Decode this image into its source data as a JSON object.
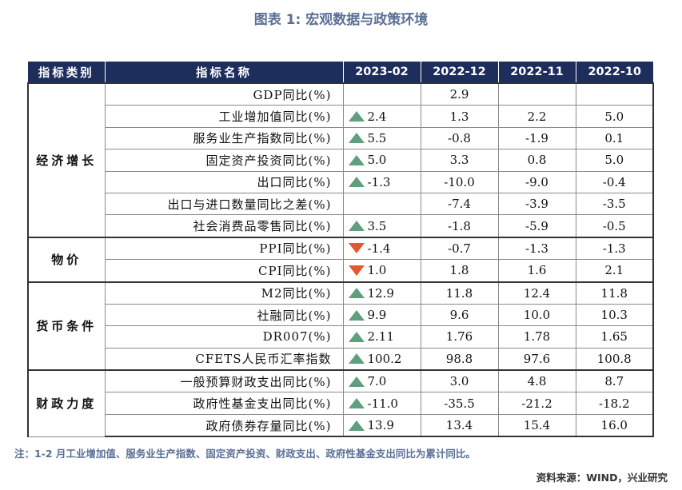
{
  "title": "图表 1:  宏观数据与政策环境",
  "headers": [
    "指标类别",
    "指标名称",
    "2023-02",
    "2022-12",
    "2022-11",
    "2022-10"
  ],
  "colors": {
    "header_bg": "#1d2d5c",
    "up": "#5f9e7f",
    "down": "#e0592f",
    "title": "#5b6f96"
  },
  "groups": [
    {
      "category": "经济增长",
      "rows": [
        {
          "name": "GDP同比(%)",
          "trend": "",
          "cur": "",
          "v2212": "2.9",
          "v2211": "",
          "v2210": ""
        },
        {
          "name": "工业增加值同比(%)",
          "trend": "up",
          "cur": "2.4",
          "v2212": "1.3",
          "v2211": "2.2",
          "v2210": "5.0"
        },
        {
          "name": "服务业生产指数同比(%)",
          "trend": "up",
          "cur": "5.5",
          "v2212": "-0.8",
          "v2211": "-1.9",
          "v2210": "0.1"
        },
        {
          "name": "固定资产投资同比(%)",
          "trend": "up",
          "cur": "5.0",
          "v2212": "3.3",
          "v2211": "0.8",
          "v2210": "5.0"
        },
        {
          "name": "出口同比(%)",
          "trend": "up",
          "cur": "-1.3",
          "v2212": "-10.0",
          "v2211": "-9.0",
          "v2210": "-0.4"
        },
        {
          "name": "出口与进口数量同比之差(%)",
          "trend": "",
          "cur": "",
          "v2212": "-7.4",
          "v2211": "-3.9",
          "v2210": "-3.5"
        },
        {
          "name": "社会消费品零售同比(%)",
          "trend": "up",
          "cur": "3.5",
          "v2212": "-1.8",
          "v2211": "-5.9",
          "v2210": "-0.5"
        }
      ]
    },
    {
      "category": "物价",
      "rows": [
        {
          "name": "PPI同比(%)",
          "trend": "down",
          "cur": "-1.4",
          "v2212": "-0.7",
          "v2211": "-1.3",
          "v2210": "-1.3"
        },
        {
          "name": "CPI同比(%)",
          "trend": "down",
          "cur": "1.0",
          "v2212": "1.8",
          "v2211": "1.6",
          "v2210": "2.1"
        }
      ]
    },
    {
      "category": "货币条件",
      "rows": [
        {
          "name": "M2同比(%)",
          "trend": "up",
          "cur": "12.9",
          "v2212": "11.8",
          "v2211": "12.4",
          "v2210": "11.8"
        },
        {
          "name": "社融同比(%)",
          "trend": "up",
          "cur": "9.9",
          "v2212": "9.6",
          "v2211": "10.0",
          "v2210": "10.3"
        },
        {
          "name": "DR007(%)",
          "trend": "up",
          "cur": "2.11",
          "v2212": "1.76",
          "v2211": "1.78",
          "v2210": "1.65"
        },
        {
          "name": "CFETS人民币汇率指数",
          "trend": "up",
          "cur": "100.2",
          "v2212": "98.8",
          "v2211": "97.6",
          "v2210": "100.8"
        }
      ]
    },
    {
      "category": "财政力度",
      "rows": [
        {
          "name": "一般预算财政支出同比(%)",
          "trend": "up",
          "cur": "7.0",
          "v2212": "3.0",
          "v2211": "4.8",
          "v2210": "8.7"
        },
        {
          "name": "政府性基金支出同比(%)",
          "trend": "up",
          "cur": "-11.0",
          "v2212": "-35.5",
          "v2211": "-21.2",
          "v2210": "-18.2"
        },
        {
          "name": "政府债券存量同比(%)",
          "trend": "up",
          "cur": "13.9",
          "v2212": "13.4",
          "v2211": "15.4",
          "v2210": "16.0"
        }
      ]
    }
  ],
  "note": "注：1-2 月工业增加值、服务业生产指数、固定资产投资、财政支出、政府性基金支出同比为累计同比。",
  "source": "资料来源：WIND，兴业研究"
}
